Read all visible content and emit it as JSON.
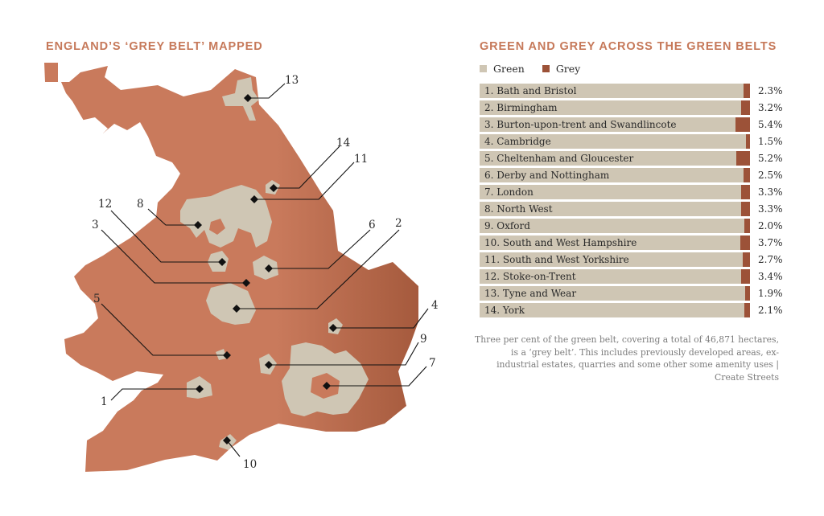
{
  "map": {
    "title": "ENGLAND’S ‘GREY BELT’ MAPPED",
    "markers": [
      {
        "label": "1"
      },
      {
        "label": "2"
      },
      {
        "label": "3"
      },
      {
        "label": "4"
      },
      {
        "label": "5"
      },
      {
        "label": "6"
      },
      {
        "label": "7"
      },
      {
        "label": "8"
      },
      {
        "label": "9"
      },
      {
        "label": "10"
      },
      {
        "label": "11"
      },
      {
        "label": "12"
      },
      {
        "label": "13"
      },
      {
        "label": "14"
      }
    ],
    "colors": {
      "land": "#c97a5c",
      "green_belt": "#cfc6b4",
      "marker": "#111111"
    }
  },
  "chart_data": {
    "type": "bar",
    "orientation": "horizontal",
    "stacked": true,
    "title": "GREEN AND GREY ACROSS THE GREEN BELTS",
    "legend": [
      {
        "name": "Green",
        "color": "#cfc6b4"
      },
      {
        "name": "Grey",
        "color": "#9c5238"
      }
    ],
    "legend_position": "top-left",
    "categories": [
      "1. Bath and Bristol",
      "2. Birmingham",
      "3. Burton-upon-trent and Swandlincote",
      "4. Cambridge",
      "5. Cheltenham and Gloucester",
      "6. Derby and Nottingham",
      "7. London",
      "8. North West",
      "9. Oxford",
      "10. South and West Hampshire",
      "11. South and West Yorkshire",
      "12. Stoke-on-Trent",
      "13. Tyne and Wear",
      "14. York"
    ],
    "series": [
      {
        "name": "Green",
        "values": [
          97.7,
          96.8,
          94.6,
          98.5,
          94.8,
          97.5,
          96.7,
          96.7,
          98.0,
          96.3,
          97.3,
          96.6,
          98.1,
          97.9
        ]
      },
      {
        "name": "Grey",
        "values": [
          2.3,
          3.2,
          5.4,
          1.5,
          5.2,
          2.5,
          3.3,
          3.3,
          2.0,
          3.7,
          2.7,
          3.4,
          1.9,
          2.1
        ]
      }
    ],
    "value_labels": [
      "2.3%",
      "3.2%",
      "5.4%",
      "1.5%",
      "5.2%",
      "2.5%",
      "3.3%",
      "3.3%",
      "2.0%",
      "3.7%",
      "2.7%",
      "3.4%",
      "1.9%",
      "2.1%"
    ],
    "unit": "%",
    "xlim": [
      0,
      100
    ],
    "grid": false
  },
  "note": "Three per cent of the green belt, covering a total of 46,871 hectares, is a ‘grey belt’. This includes previously developed areas, ex-industrial estates, quarries and some other some amenity uses | Create Streets"
}
